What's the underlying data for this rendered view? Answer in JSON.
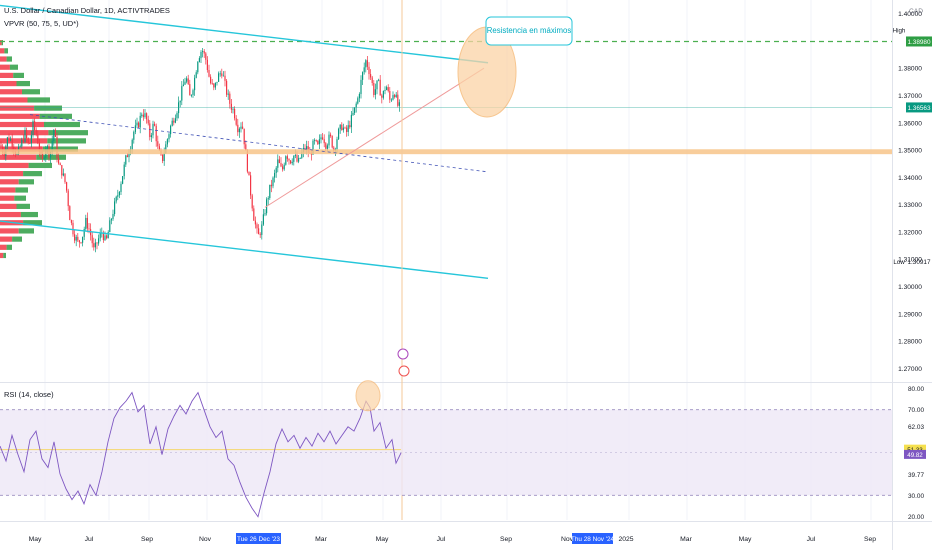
{
  "header": {
    "symbol_line": "U.S. Dollar / Canadian Dollar, 1D, ACTIVTRADES",
    "indicator_line": "VPVR (50, 75, 5, UD*)"
  },
  "rsi_header": "RSI (14, close)",
  "currency_label": "CAD",
  "annotation_text": "Resistencia en máximos",
  "price_axis": {
    "ticks": [
      "1.40000",
      "1.38980",
      "1.38000",
      "1.37000",
      "1.36563",
      "1.36000",
      "1.35000",
      "1.34000",
      "1.33000",
      "1.32000",
      "1.31000",
      "1.30917",
      "1.30000",
      "1.29000",
      "1.28000",
      "1.27000"
    ],
    "high_label": "High",
    "high_value": "1.38980",
    "current_value": "1.36563",
    "low_label": "Low",
    "low_value": "1.30917"
  },
  "rsi_axis": {
    "ticks": [
      "80.00",
      "70.00",
      "62.03",
      "51.33",
      "49.82",
      "39.77",
      "30.00",
      "20.00"
    ],
    "value_a": "51.33",
    "value_b": "49.82"
  },
  "time_axis": {
    "labels": [
      "May",
      "Jul",
      "Sep",
      "Nov",
      "Mar",
      "May",
      "Jul",
      "Sep",
      "Nov",
      "2025",
      "Mar",
      "May",
      "Jul",
      "Sep"
    ],
    "highlight_a": "Tue 26 Dec '23",
    "highlight_b": "Thu 28 Nov '24"
  },
  "colors": {
    "up": "#089981",
    "down": "#f23645",
    "channel": "#26c6da",
    "resistance": "#4caf50",
    "support_zone": "#f7c48a",
    "rsi_line": "#7e57c2",
    "rsi_band": "#ede7f6",
    "accent_blue": "#2962ff"
  },
  "chart_data": {
    "type": "candlestick",
    "symbol": "USDCAD",
    "timeframe": "1D",
    "price_range": [
      1.265,
      1.405
    ],
    "high": 1.3898,
    "low": 1.30917,
    "last": 1.36563,
    "price_path": [
      [
        0,
        1.352
      ],
      [
        4,
        1.349
      ],
      [
        8,
        1.355
      ],
      [
        12,
        1.353
      ],
      [
        17,
        1.348
      ],
      [
        21,
        1.352
      ],
      [
        25,
        1.356
      ],
      [
        29,
        1.351
      ],
      [
        33,
        1.359
      ],
      [
        37,
        1.355
      ],
      [
        42,
        1.345
      ],
      [
        46,
        1.352
      ],
      [
        50,
        1.348
      ],
      [
        54,
        1.358
      ],
      [
        58,
        1.345
      ],
      [
        62,
        1.342
      ],
      [
        66,
        1.337
      ],
      [
        70,
        1.325
      ],
      [
        74,
        1.319
      ],
      [
        78,
        1.316
      ],
      [
        82,
        1.318
      ],
      [
        86,
        1.324
      ],
      [
        90,
        1.32
      ],
      [
        94,
        1.313
      ],
      [
        98,
        1.317
      ],
      [
        102,
        1.32
      ],
      [
        106,
        1.316
      ],
      [
        110,
        1.323
      ],
      [
        114,
        1.329
      ],
      [
        118,
        1.334
      ],
      [
        122,
        1.34
      ],
      [
        126,
        1.347
      ],
      [
        130,
        1.351
      ],
      [
        134,
        1.357
      ],
      [
        138,
        1.359
      ],
      [
        142,
        1.364
      ],
      [
        146,
        1.362
      ],
      [
        150,
        1.355
      ],
      [
        154,
        1.36
      ],
      [
        158,
        1.35
      ],
      [
        162,
        1.346
      ],
      [
        166,
        1.352
      ],
      [
        170,
        1.358
      ],
      [
        174,
        1.362
      ],
      [
        178,
        1.366
      ],
      [
        182,
        1.372
      ],
      [
        186,
        1.377
      ],
      [
        190,
        1.369
      ],
      [
        194,
        1.375
      ],
      [
        198,
        1.384
      ],
      [
        202,
        1.387
      ],
      [
        206,
        1.383
      ],
      [
        210,
        1.375
      ],
      [
        214,
        1.372
      ],
      [
        218,
        1.377
      ],
      [
        222,
        1.379
      ],
      [
        226,
        1.372
      ],
      [
        230,
        1.367
      ],
      [
        234,
        1.364
      ],
      [
        238,
        1.358
      ],
      [
        242,
        1.36
      ],
      [
        246,
        1.348
      ],
      [
        250,
        1.336
      ],
      [
        254,
        1.325
      ],
      [
        258,
        1.318
      ],
      [
        262,
        1.322
      ],
      [
        266,
        1.33
      ],
      [
        270,
        1.336
      ],
      [
        274,
        1.34
      ],
      [
        278,
        1.346
      ],
      [
        282,
        1.342
      ],
      [
        286,
        1.349
      ],
      [
        290,
        1.346
      ],
      [
        294,
        1.348
      ],
      [
        298,
        1.345
      ],
      [
        302,
        1.349
      ],
      [
        306,
        1.351
      ],
      [
        310,
        1.348
      ],
      [
        314,
        1.353
      ],
      [
        318,
        1.351
      ],
      [
        322,
        1.356
      ],
      [
        326,
        1.352
      ],
      [
        330,
        1.355
      ],
      [
        334,
        1.35
      ],
      [
        338,
        1.356
      ],
      [
        342,
        1.359
      ],
      [
        346,
        1.356
      ],
      [
        350,
        1.36
      ],
      [
        354,
        1.364
      ],
      [
        358,
        1.369
      ],
      [
        362,
        1.377
      ],
      [
        366,
        1.383
      ],
      [
        370,
        1.378
      ],
      [
        374,
        1.371
      ],
      [
        378,
        1.375
      ],
      [
        382,
        1.369
      ],
      [
        386,
        1.374
      ],
      [
        390,
        1.368
      ],
      [
        394,
        1.372
      ],
      [
        398,
        1.366
      ],
      [
        401,
        1.3656
      ]
    ],
    "rsi": {
      "range": [
        18,
        82
      ],
      "levels": [
        70,
        30
      ],
      "path": [
        [
          0,
          53
        ],
        [
          6,
          46
        ],
        [
          12,
          58
        ],
        [
          18,
          49
        ],
        [
          24,
          41
        ],
        [
          30,
          56
        ],
        [
          36,
          60
        ],
        [
          42,
          47
        ],
        [
          48,
          43
        ],
        [
          54,
          55
        ],
        [
          60,
          40
        ],
        [
          66,
          33
        ],
        [
          72,
          28
        ],
        [
          78,
          32
        ],
        [
          84,
          26
        ],
        [
          90,
          35
        ],
        [
          96,
          30
        ],
        [
          102,
          41
        ],
        [
          108,
          55
        ],
        [
          114,
          66
        ],
        [
          120,
          71
        ],
        [
          126,
          74
        ],
        [
          132,
          78
        ],
        [
          138,
          69
        ],
        [
          144,
          72
        ],
        [
          150,
          54
        ],
        [
          156,
          62
        ],
        [
          162,
          49
        ],
        [
          168,
          61
        ],
        [
          174,
          67
        ],
        [
          180,
          72
        ],
        [
          186,
          68
        ],
        [
          192,
          74
        ],
        [
          198,
          78
        ],
        [
          204,
          70
        ],
        [
          210,
          62
        ],
        [
          216,
          57
        ],
        [
          222,
          60
        ],
        [
          228,
          47
        ],
        [
          234,
          44
        ],
        [
          240,
          36
        ],
        [
          246,
          29
        ],
        [
          252,
          24
        ],
        [
          258,
          20
        ],
        [
          264,
          31
        ],
        [
          270,
          41
        ],
        [
          276,
          54
        ],
        [
          282,
          61
        ],
        [
          288,
          55
        ],
        [
          294,
          58
        ],
        [
          300,
          52
        ],
        [
          306,
          57
        ],
        [
          312,
          53
        ],
        [
          318,
          59
        ],
        [
          324,
          55
        ],
        [
          330,
          60
        ],
        [
          336,
          54
        ],
        [
          342,
          58
        ],
        [
          348,
          62
        ],
        [
          354,
          60
        ],
        [
          360,
          66
        ],
        [
          366,
          74
        ],
        [
          370,
          71
        ],
        [
          374,
          60
        ],
        [
          380,
          64
        ],
        [
          386,
          52
        ],
        [
          392,
          56
        ],
        [
          396,
          45
        ],
        [
          401,
          49.8
        ]
      ],
      "ma_value": 51.33
    },
    "vpvr": [
      [
        1.389,
        3
      ],
      [
        1.386,
        8
      ],
      [
        1.383,
        12
      ],
      [
        1.38,
        18
      ],
      [
        1.377,
        24
      ],
      [
        1.374,
        30
      ],
      [
        1.371,
        40
      ],
      [
        1.368,
        50
      ],
      [
        1.365,
        62
      ],
      [
        1.362,
        72
      ],
      [
        1.359,
        80
      ],
      [
        1.356,
        88
      ],
      [
        1.353,
        86
      ],
      [
        1.35,
        78
      ],
      [
        1.347,
        66
      ],
      [
        1.344,
        52
      ],
      [
        1.341,
        42
      ],
      [
        1.338,
        34
      ],
      [
        1.335,
        28
      ],
      [
        1.332,
        26
      ],
      [
        1.329,
        30
      ],
      [
        1.326,
        38
      ],
      [
        1.323,
        42
      ],
      [
        1.32,
        34
      ],
      [
        1.317,
        22
      ],
      [
        1.314,
        12
      ],
      [
        1.311,
        6
      ]
    ],
    "drawings": {
      "upper_channel": [
        [
          0,
          1.403
        ],
        [
          488,
          1.382
        ]
      ],
      "lower_channel": [
        [
          0,
          1.324
        ],
        [
          488,
          1.303
        ]
      ],
      "mid_channel": [
        [
          30,
          1.363
        ],
        [
          488,
          1.342
        ]
      ],
      "rising_trendline": [
        [
          265,
          1.329
        ],
        [
          484,
          1.38
        ]
      ],
      "resistance_level": 1.3898,
      "support_zone": [
        1.3485,
        1.3503
      ],
      "current_price": 1.36563,
      "rsi_levels": [
        70,
        30
      ],
      "rsi_highlight": 76.5
    }
  }
}
